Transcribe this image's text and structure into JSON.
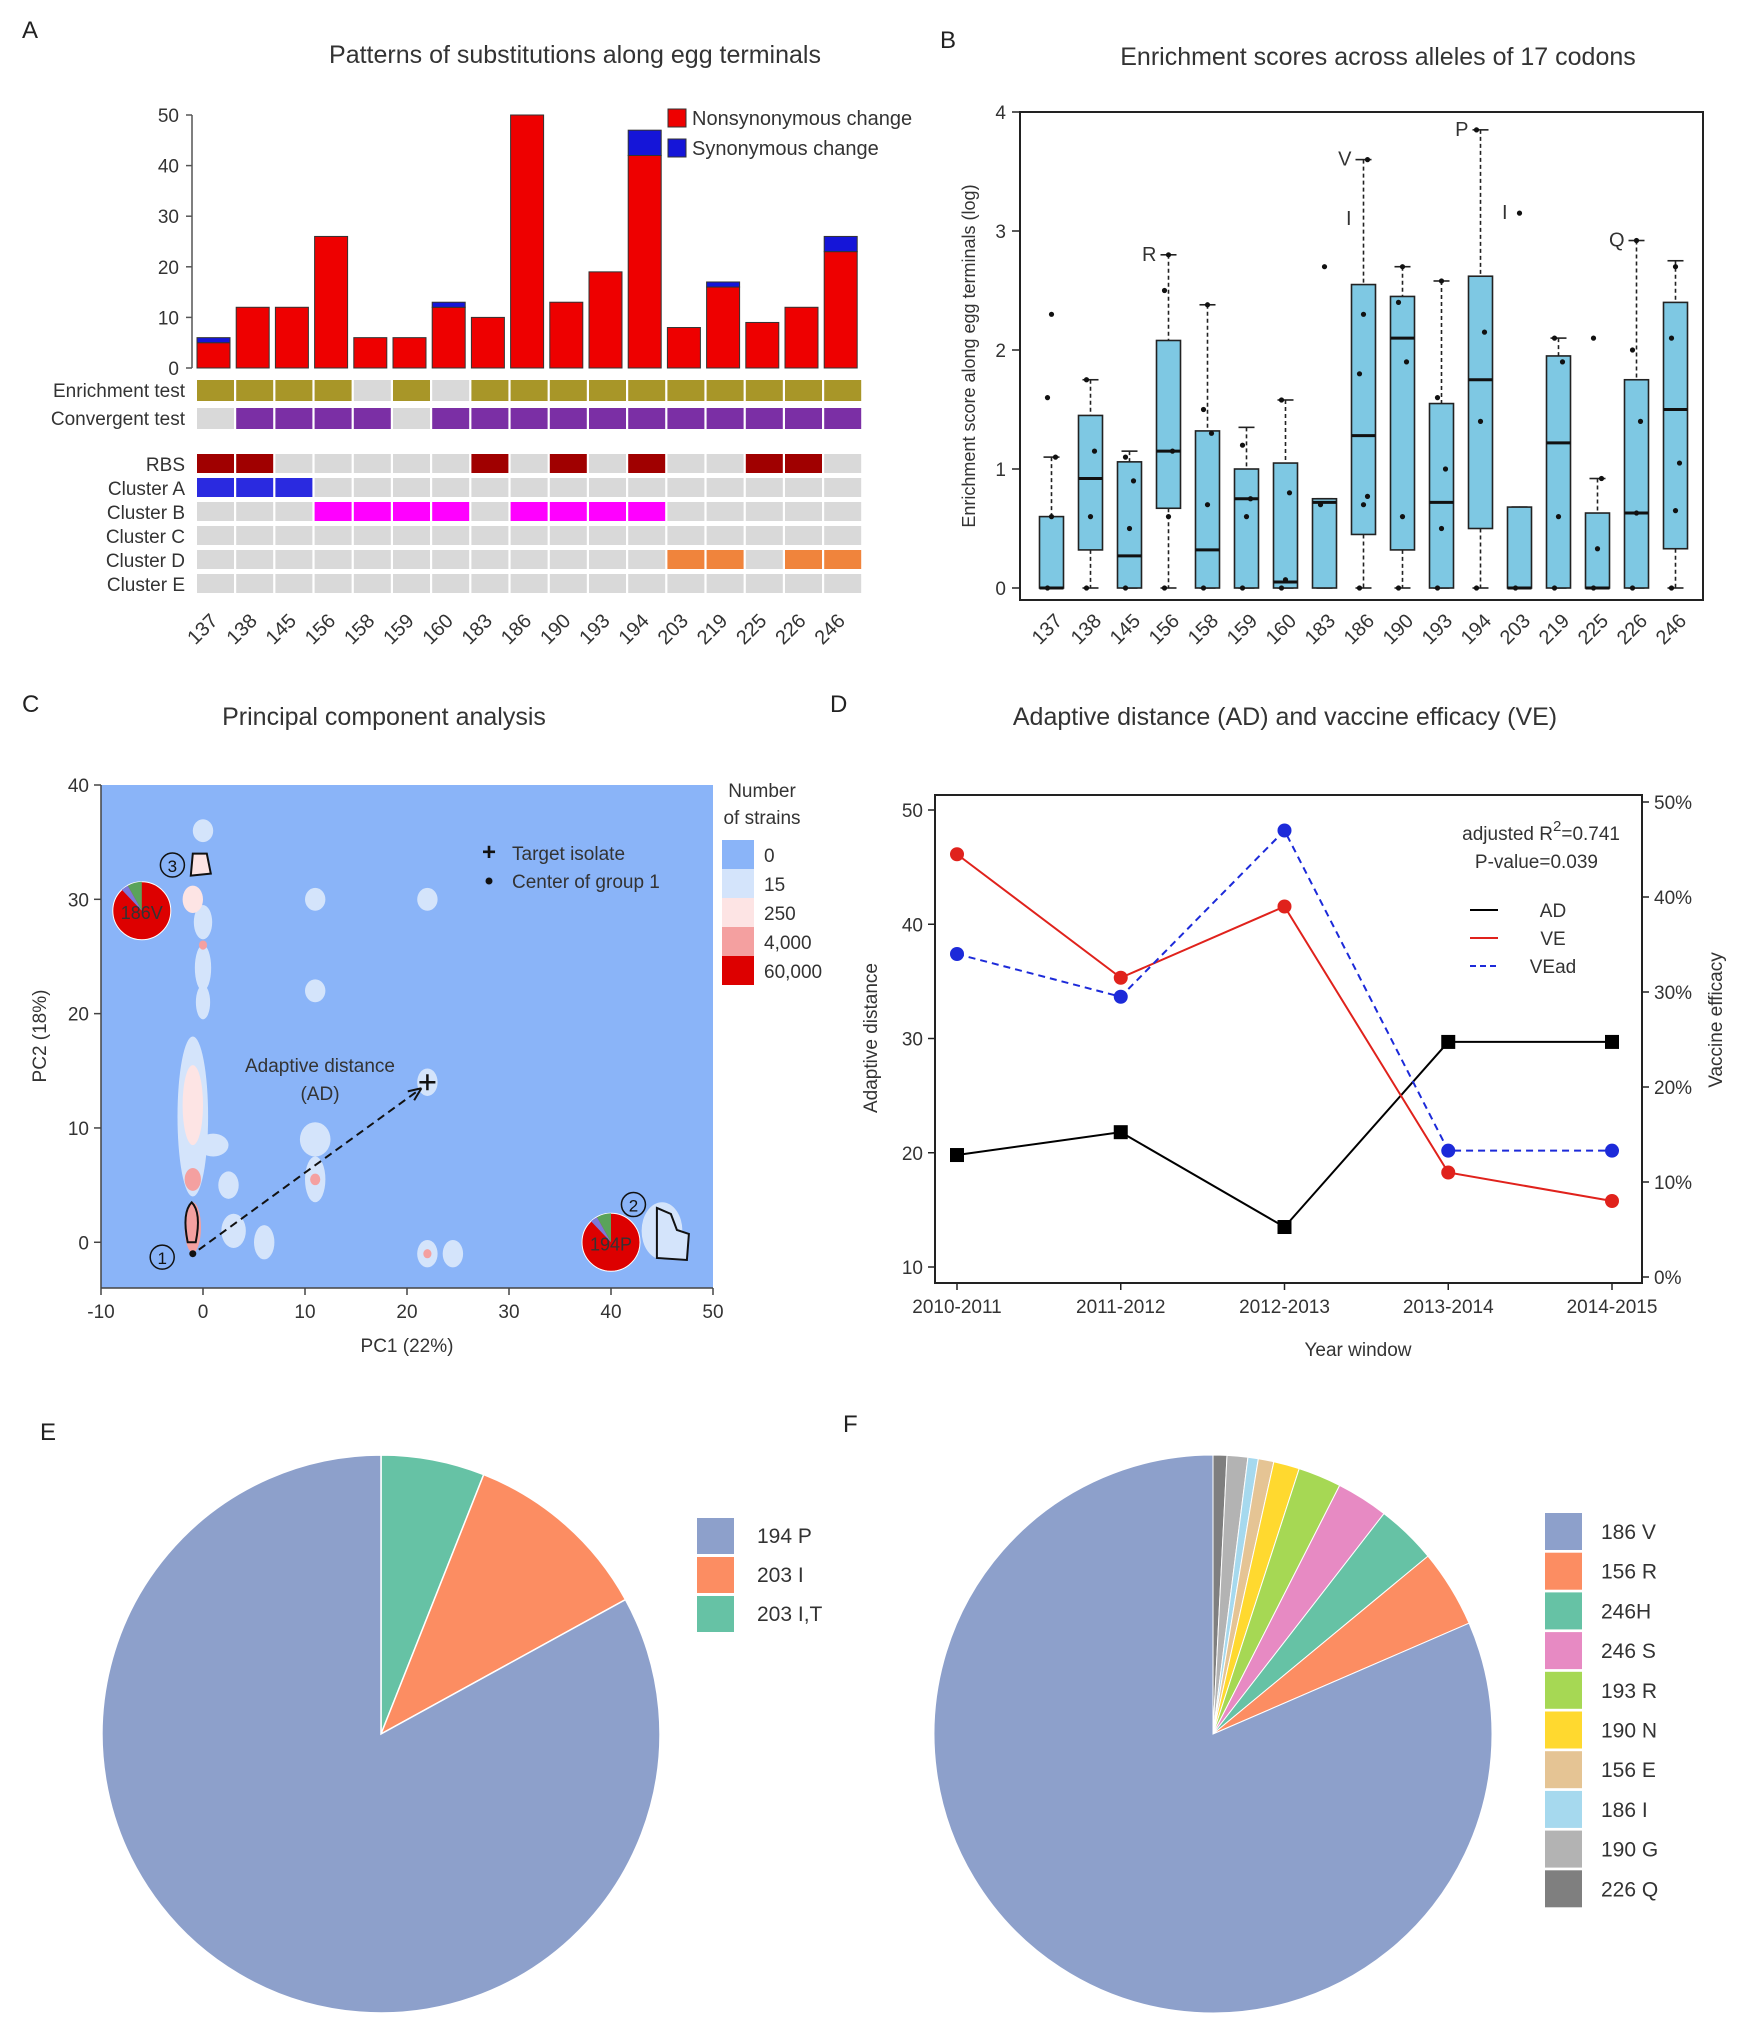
{
  "panel_letters": [
    "A",
    "B",
    "C",
    "D",
    "E",
    "F"
  ],
  "chart_data": [
    {
      "panel": "A",
      "type": "bar",
      "title": "Patterns of substitutions along egg terminals",
      "categories": [
        "137",
        "138",
        "145",
        "156",
        "158",
        "159",
        "160",
        "183",
        "186",
        "190",
        "193",
        "194",
        "203",
        "219",
        "225",
        "226",
        "246"
      ],
      "series": [
        {
          "name": "Nonsynonymous change",
          "color": "#ee0000",
          "values": [
            5,
            12,
            12,
            26,
            6,
            6,
            12,
            10,
            50,
            13,
            19,
            42,
            8,
            16,
            9,
            12,
            23
          ]
        },
        {
          "name": "Synonymous change",
          "color": "#1515d8",
          "values": [
            1,
            0,
            0,
            0,
            0,
            0,
            1,
            0,
            0,
            0,
            0,
            5,
            0,
            1,
            0,
            0,
            3
          ]
        }
      ],
      "ylim": [
        0,
        50
      ],
      "yticks": [
        0,
        10,
        20,
        30,
        40,
        50
      ],
      "legend": "top-right",
      "tests": [
        {
          "label": "Enrichment test",
          "color": "#a89628",
          "marks": [
            1,
            1,
            1,
            1,
            0,
            1,
            0,
            1,
            1,
            1,
            1,
            1,
            1,
            1,
            1,
            1,
            1
          ]
        },
        {
          "label": "Convergent test",
          "color": "#7b2fa5",
          "marks": [
            0,
            1,
            1,
            1,
            1,
            0,
            1,
            1,
            1,
            1,
            1,
            1,
            1,
            1,
            1,
            1,
            1
          ]
        }
      ],
      "annotations": [
        {
          "label": "RBS",
          "color": "#a00000",
          "marks": [
            1,
            1,
            0,
            0,
            0,
            0,
            0,
            1,
            0,
            1,
            0,
            1,
            0,
            0,
            1,
            1,
            0
          ]
        },
        {
          "label": "Cluster A",
          "color": "#2a2ae0",
          "marks": [
            1,
            1,
            1,
            0,
            0,
            0,
            0,
            0,
            0,
            0,
            0,
            0,
            0,
            0,
            0,
            0,
            0
          ]
        },
        {
          "label": "Cluster B",
          "color": "#ff00ff",
          "marks": [
            0,
            0,
            0,
            1,
            1,
            1,
            1,
            0,
            1,
            1,
            1,
            1,
            0,
            0,
            0,
            0,
            0
          ]
        },
        {
          "label": "Cluster C",
          "color": "#d9d9d9",
          "marks": [
            0,
            0,
            0,
            0,
            0,
            0,
            0,
            0,
            0,
            0,
            0,
            0,
            0,
            0,
            0,
            0,
            0
          ]
        },
        {
          "label": "Cluster D",
          "color": "#f0843c",
          "marks": [
            0,
            0,
            0,
            0,
            0,
            0,
            0,
            0,
            0,
            0,
            0,
            0,
            1,
            1,
            0,
            1,
            1
          ]
        },
        {
          "label": "Cluster E",
          "color": "#d9d9d9",
          "marks": [
            0,
            0,
            0,
            0,
            0,
            0,
            0,
            0,
            0,
            0,
            0,
            0,
            0,
            0,
            0,
            0,
            0
          ]
        }
      ]
    },
    {
      "panel": "B",
      "type": "box",
      "title": "Enrichment scores across alleles of 17 codons",
      "ylabel": "Enrichment score along egg terminals (log)",
      "ylim": [
        0,
        4
      ],
      "yticks": [
        0,
        1,
        2,
        3,
        4
      ],
      "box_color": "#7ec8e3",
      "categories": [
        "137",
        "138",
        "145",
        "156",
        "158",
        "159",
        "160",
        "183",
        "186",
        "190",
        "193",
        "194",
        "203",
        "219",
        "225",
        "226",
        "246"
      ],
      "boxes": [
        {
          "min": 0,
          "q1": 0,
          "median": 0,
          "q3": 0.6,
          "max": 1.1,
          "points": [
            0,
            0.6,
            1.1,
            1.6,
            2.3
          ]
        },
        {
          "min": 0,
          "q1": 0.32,
          "median": 0.92,
          "q3": 1.45,
          "max": 1.75,
          "points": [
            0,
            0.6,
            1.15,
            1.75
          ]
        },
        {
          "min": 0,
          "q1": 0,
          "median": 0.27,
          "q3": 1.06,
          "max": 1.15,
          "points": [
            0,
            0.5,
            0.9,
            1.1
          ]
        },
        {
          "min": 0,
          "q1": 0.67,
          "median": 1.15,
          "q3": 2.08,
          "max": 2.8,
          "points": [
            0,
            0.6,
            1.15,
            2.5,
            2.8
          ]
        },
        {
          "min": 0,
          "q1": 0,
          "median": 0.32,
          "q3": 1.32,
          "max": 2.38,
          "points": [
            0,
            0.7,
            1.3,
            1.5,
            2.38
          ]
        },
        {
          "min": 0,
          "q1": 0,
          "median": 0.75,
          "q3": 1.0,
          "max": 1.35,
          "points": [
            0,
            0.6,
            0.75,
            1.2
          ]
        },
        {
          "min": 0,
          "q1": 0,
          "median": 0.05,
          "q3": 1.05,
          "max": 1.58,
          "points": [
            0,
            0.07,
            0.8,
            1.58
          ]
        },
        {
          "min": 0,
          "q1": 0,
          "median": 0.72,
          "q3": 0.75,
          "max": 0.75,
          "points": [
            0.7,
            2.7
          ]
        },
        {
          "min": 0,
          "q1": 0.45,
          "median": 1.28,
          "q3": 2.55,
          "max": 3.6,
          "points": [
            0,
            0.7,
            0.77,
            1.8,
            2.3,
            3.6
          ]
        },
        {
          "min": 0,
          "q1": 0.32,
          "median": 2.1,
          "q3": 2.45,
          "max": 2.7,
          "points": [
            0,
            0.6,
            1.9,
            2.4,
            2.7
          ]
        },
        {
          "min": 0,
          "q1": 0,
          "median": 0.72,
          "q3": 1.55,
          "max": 2.58,
          "points": [
            0,
            0.5,
            1.0,
            1.6,
            2.58
          ]
        },
        {
          "min": 0,
          "q1": 0.5,
          "median": 1.75,
          "q3": 2.62,
          "max": 3.85,
          "points": [
            0,
            1.4,
            2.15,
            3.85
          ]
        },
        {
          "min": 0,
          "q1": 0,
          "median": 0,
          "q3": 0.68,
          "max": 0.68,
          "points": [
            0,
            3.15
          ]
        },
        {
          "min": 0,
          "q1": 0,
          "median": 1.22,
          "q3": 1.95,
          "max": 2.1,
          "points": [
            0,
            0.6,
            1.9,
            2.1
          ]
        },
        {
          "min": 0,
          "q1": 0,
          "median": 0,
          "q3": 0.63,
          "max": 0.92,
          "points": [
            0,
            0.33,
            0.92,
            2.1
          ]
        },
        {
          "min": 0,
          "q1": 0,
          "median": 0.63,
          "q3": 1.75,
          "max": 2.92,
          "points": [
            0,
            0.63,
            1.4,
            2.0,
            2.92
          ]
        },
        {
          "min": 0,
          "q1": 0.33,
          "median": 1.5,
          "q3": 2.4,
          "max": 2.75,
          "points": [
            0,
            0.65,
            1.05,
            2.1,
            2.7
          ]
        }
      ],
      "annotations": [
        {
          "category": "156",
          "value": 2.8,
          "text": "R"
        },
        {
          "category": "186",
          "value": 3.6,
          "text": "V"
        },
        {
          "category": "186",
          "value": 3.1,
          "text": "I"
        },
        {
          "category": "194",
          "value": 3.85,
          "text": "P"
        },
        {
          "category": "203",
          "value": 3.15,
          "text": "I"
        },
        {
          "category": "226",
          "value": 2.92,
          "text": "Q"
        }
      ]
    },
    {
      "panel": "C",
      "type": "heatmap",
      "title": "Principal component analysis",
      "xlabel": "PC1 (22%)",
      "ylabel": "PC2 (18%)",
      "xlim": [
        -10,
        50
      ],
      "ylim": [
        -4,
        40
      ],
      "xticks": [
        -10,
        0,
        10,
        20,
        30,
        40,
        50
      ],
      "yticks": [
        0,
        10,
        20,
        30,
        40
      ],
      "background": "#8ab4f8",
      "color_legend_title": [
        "Number",
        "of strains"
      ],
      "color_legend": [
        {
          "label": "0",
          "color": "#8ab4f8"
        },
        {
          "label": "15",
          "color": "#d4e4fb"
        },
        {
          "label": "250",
          "color": "#fde4e4"
        },
        {
          "label": "4,000",
          "color": "#f4a0a0"
        },
        {
          "label": "60,000",
          "color": "#dd0000"
        }
      ],
      "marker_legend": [
        {
          "symbol": "plus",
          "label": "Target isolate"
        },
        {
          "symbol": "dot",
          "label": "Center of group 1"
        }
      ],
      "blobs": [
        {
          "x": 0,
          "y": 36,
          "rx": 1,
          "ry": 1,
          "level": 1
        },
        {
          "x": 0,
          "y": 28,
          "rx": 0.9,
          "ry": 1.5,
          "level": 1
        },
        {
          "x": 0,
          "y": 24,
          "rx": 0.8,
          "ry": 2.0,
          "level": 1
        },
        {
          "x": 0,
          "y": 21,
          "rx": 0.7,
          "ry": 1.5,
          "level": 1
        },
        {
          "x": -1,
          "y": 11,
          "rx": 1.5,
          "ry": 7,
          "level": 1
        },
        {
          "x": -1,
          "y": 12,
          "rx": 1.0,
          "ry": 3.5,
          "level": 2
        },
        {
          "x": -1,
          "y": 5.5,
          "rx": 0.8,
          "ry": 1,
          "level": 3
        },
        {
          "x": -1,
          "y": 1.3,
          "rx": 0.8,
          "ry": 2.2,
          "level": 3
        },
        {
          "x": 1,
          "y": 8.5,
          "rx": 1.5,
          "ry": 1,
          "level": 1
        },
        {
          "x": 2.5,
          "y": 5,
          "rx": 1,
          "ry": 1.2,
          "level": 1
        },
        {
          "x": 3,
          "y": 1,
          "rx": 1.2,
          "ry": 1.5,
          "level": 1
        },
        {
          "x": 6,
          "y": 0,
          "rx": 1,
          "ry": 1.5,
          "level": 1
        },
        {
          "x": 11,
          "y": 30,
          "rx": 1,
          "ry": 1,
          "level": 1
        },
        {
          "x": 11,
          "y": 22,
          "rx": 1,
          "ry": 1,
          "level": 1
        },
        {
          "x": 11,
          "y": 9,
          "rx": 1.5,
          "ry": 1.5,
          "level": 1
        },
        {
          "x": 11,
          "y": 5.5,
          "rx": 1,
          "ry": 2,
          "level": 1
        },
        {
          "x": 11,
          "y": 5.5,
          "rx": 0.5,
          "ry": 0.5,
          "level": 3
        },
        {
          "x": 22,
          "y": 30,
          "rx": 1,
          "ry": 1,
          "level": 1
        },
        {
          "x": 22,
          "y": 14,
          "rx": 1,
          "ry": 1.2,
          "level": 1
        },
        {
          "x": 22,
          "y": -1,
          "rx": 1,
          "ry": 1.2,
          "level": 1
        },
        {
          "x": 22,
          "y": -1,
          "rx": 0.4,
          "ry": 0.4,
          "level": 3
        },
        {
          "x": 24.5,
          "y": -1,
          "rx": 1,
          "ry": 1.2,
          "level": 1
        },
        {
          "x": 45,
          "y": 1,
          "rx": 2,
          "ry": 2.5,
          "level": 1
        },
        {
          "x": -1,
          "y": 30,
          "rx": 1,
          "ry": 1.2,
          "level": 2
        },
        {
          "x": 0,
          "y": 26,
          "rx": 0.4,
          "ry": 0.4,
          "level": 3
        }
      ],
      "target_isolate": {
        "x": 22,
        "y": 14
      },
      "group1_center": {
        "x": -1,
        "y": -1
      },
      "arrow_label": [
        "Adaptive distance",
        "(AD)"
      ],
      "groups": [
        {
          "id": "1",
          "x": -1,
          "y": -1,
          "label": "①"
        },
        {
          "id": "2",
          "x": 45,
          "y": 1,
          "label": "②",
          "pie_label": "194P",
          "pie_x": 40,
          "pie_y": 0
        },
        {
          "id": "3",
          "x": -3,
          "y": 31,
          "label": "③",
          "pie_label": "186V",
          "pie_x": -6,
          "pie_y": 29
        }
      ]
    },
    {
      "panel": "D",
      "type": "line",
      "title": "Adaptive distance (AD) and vaccine efficacy (VE)",
      "xlabel": "Year window",
      "ylabel": "Adaptive distance",
      "ylabel_right": "Vaccine efficacy",
      "categories": [
        "2010-2011",
        "2011-2012",
        "2012-2013",
        "2013-2014",
        "2014-2015"
      ],
      "ylim": [
        10,
        50
      ],
      "yticks": [
        10,
        20,
        30,
        40,
        50
      ],
      "ylim_right": [
        0,
        50
      ],
      "yticks_right": [
        "0%",
        "10%",
        "20%",
        "30%",
        "40%",
        "50%"
      ],
      "series": [
        {
          "name": "AD",
          "axis": "left",
          "color": "#000000",
          "marker": "square",
          "dash": false,
          "values": [
            19.8,
            21.8,
            13.5,
            29.7,
            29.7
          ]
        },
        {
          "name": "VE",
          "axis": "right",
          "color": "#e0221c",
          "marker": "circle",
          "dash": false,
          "values": [
            44.5,
            31.5,
            39,
            11,
            8
          ]
        },
        {
          "name": "VEad",
          "axis": "right",
          "color": "#1c2ad9",
          "marker": "circle",
          "dash": true,
          "values": [
            34,
            29.5,
            47,
            13.3,
            13.3
          ]
        }
      ],
      "stat_prefix": "adjusted R",
      "stat_sup": "2",
      "stat_value": "=0.741",
      "p_value": "P-value=0.039"
    },
    {
      "panel": "E",
      "type": "pie",
      "labels": [
        "194 P",
        "203 I",
        "203 I,T"
      ],
      "values": [
        83,
        11,
        6
      ],
      "colors": [
        "#8da0cb",
        "#fc8d62",
        "#66c2a5"
      ],
      "legend": "right"
    },
    {
      "panel": "F",
      "type": "pie",
      "labels": [
        "186 V",
        "156 R",
        " 246H",
        "246 S",
        "193 R",
        "190 N",
        "156 E",
        "186 I",
        "190 G",
        "226 Q"
      ],
      "values": [
        81.5,
        4.5,
        3.5,
        3,
        2.5,
        1.5,
        0.9,
        0.6,
        1.2,
        0.8
      ],
      "colors": [
        "#8da0cb",
        "#fc8d62",
        "#66c2a5",
        "#e78ac3",
        "#a6d854",
        "#ffd92f",
        "#e5c494",
        "#a6d9ee",
        "#b3b3b3",
        "#7f7f7f"
      ],
      "legend": "right"
    }
  ]
}
